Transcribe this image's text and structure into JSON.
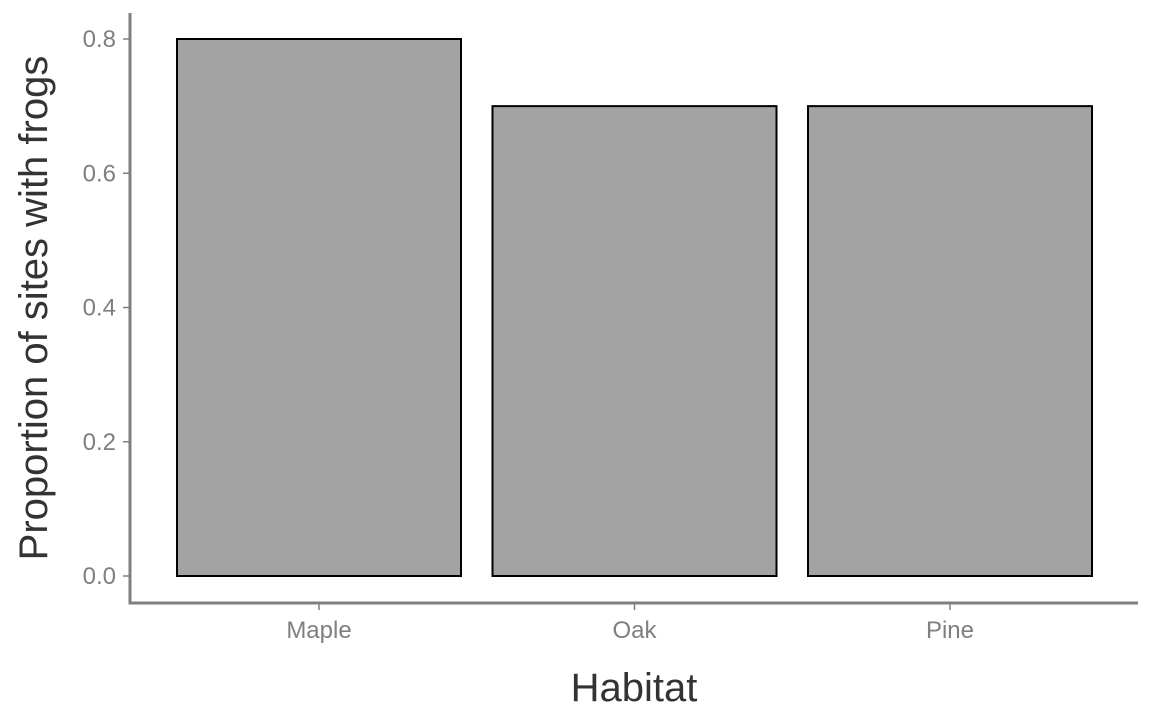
{
  "chart_data": {
    "type": "bar",
    "categories": [
      "Maple",
      "Oak",
      "Pine"
    ],
    "values": [
      0.8,
      0.7,
      0.7
    ],
    "xlabel": "Habitat",
    "ylabel": "Proportion of sites with frogs",
    "ylim": [
      0,
      0.8
    ],
    "yticks": [
      "0.0",
      "0.2",
      "0.4",
      "0.6",
      "0.8"
    ],
    "grid": false,
    "legend": "none",
    "bar_fill": "#a3a3a3",
    "bar_outline": "#000000"
  }
}
